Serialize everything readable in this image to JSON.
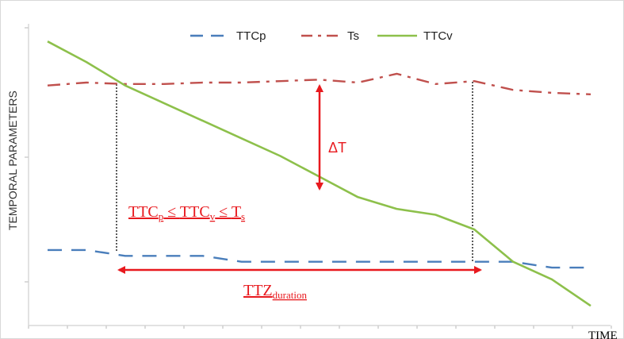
{
  "chart_data": {
    "type": "line",
    "title": "",
    "xlabel": "TIME",
    "ylabel": "TEMPORAL PARAMETERS",
    "xlim": [
      0,
      14
    ],
    "ylim": [
      0,
      10
    ],
    "grid": false,
    "legend_position": "top",
    "series": [
      {
        "name": "TTCp",
        "color": "#4a7ebb",
        "style": "dashed",
        "x": [
          0,
          1,
          2,
          3,
          4,
          5,
          6,
          7,
          8,
          9,
          10,
          11,
          12,
          13,
          14
        ],
        "y": [
          2.3,
          2.3,
          2.1,
          2.1,
          2.1,
          1.9,
          1.9,
          1.9,
          1.9,
          1.9,
          1.9,
          1.9,
          1.9,
          1.7,
          1.7
        ]
      },
      {
        "name": "Ts",
        "color": "#c0504d",
        "style": "dash-dot",
        "x": [
          0,
          1,
          2,
          3,
          4,
          5,
          6,
          7,
          8,
          9,
          10,
          11,
          12,
          13,
          14
        ],
        "y": [
          7.9,
          8.0,
          7.95,
          7.95,
          8.0,
          8.0,
          8.05,
          8.1,
          8.0,
          8.3,
          7.95,
          8.05,
          7.75,
          7.65,
          7.6
        ]
      },
      {
        "name": "TTCv",
        "color": "#8dc04b",
        "style": "solid",
        "x": [
          0,
          1,
          2,
          3,
          4,
          5,
          6,
          7,
          8,
          9,
          10,
          11,
          12,
          13,
          14
        ],
        "y": [
          9.4,
          8.7,
          7.9,
          7.3,
          6.7,
          6.1,
          5.5,
          4.8,
          4.1,
          3.7,
          3.5,
          3.0,
          1.9,
          1.3,
          0.4
        ]
      }
    ],
    "annotations": {
      "delta_t": "ΔT",
      "inequality": {
        "a": "TTC",
        "a_sub": "p",
        "le1": " ≤ ",
        "b": "TTC",
        "b_sub": "v",
        "le2": " ≤ ",
        "c": "T",
        "c_sub": "s"
      },
      "duration": {
        "main": "TTZ",
        "sub": "duration"
      }
    }
  }
}
